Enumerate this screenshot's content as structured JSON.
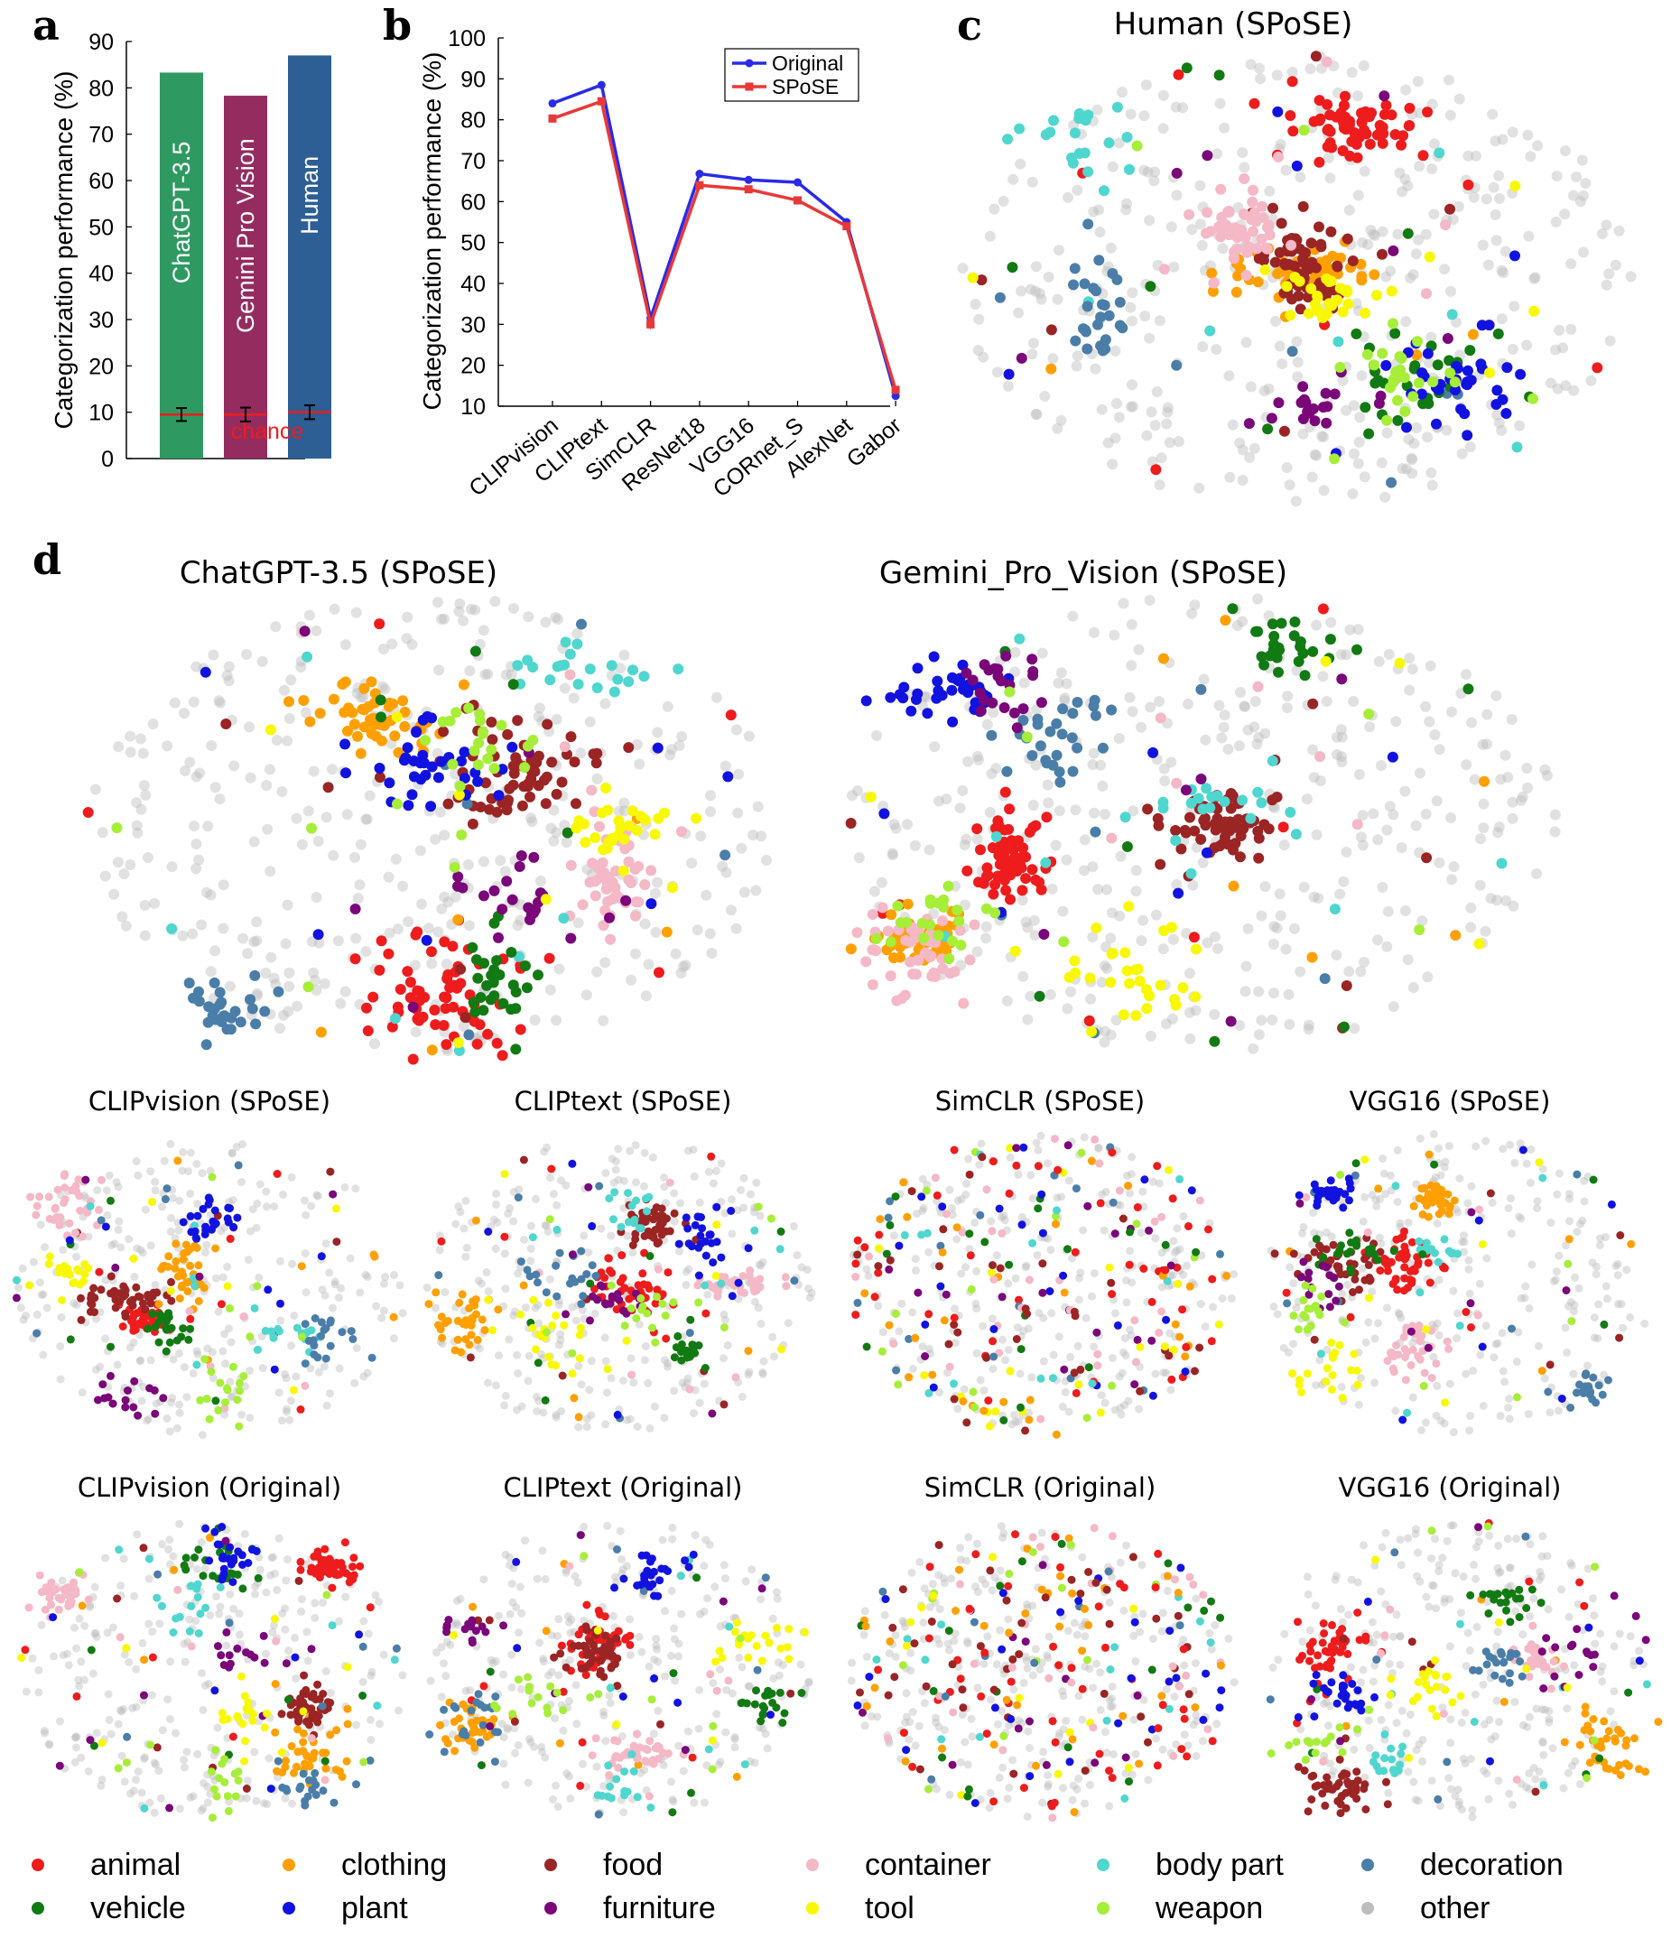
{
  "panel_labels": {
    "a": "a",
    "b": "b",
    "c": "c",
    "d": "d"
  },
  "colors": {
    "animal": "#ee1c1c",
    "clothing": "#ffa000",
    "food": "#9b2424",
    "container": "#f4b8c6",
    "body part": "#4fd6cf",
    "decoration": "#4a7ea8",
    "vehicle": "#127a12",
    "plant": "#1212e0",
    "furniture": "#7a067a",
    "tool": "#f8f800",
    "weapon": "#a6ee38",
    "other": "#bdbdbd"
  },
  "chart_data": [
    {
      "id": "a",
      "type": "bar",
      "ylabel": "Categorization performance (%)",
      "ylim": [
        0,
        90
      ],
      "yticks": [
        0,
        10,
        20,
        30,
        40,
        50,
        60,
        70,
        80,
        90
      ],
      "categories": [
        "ChatGPT-3.5",
        "Gemini Pro Vision",
        "Human"
      ],
      "values": [
        83.3,
        78.3,
        87.0
      ],
      "bar_colors": [
        "#2e9a62",
        "#952c60",
        "#2d5e94"
      ],
      "chance_values": [
        9.5,
        9.5,
        10.0
      ],
      "chance_errors": [
        1.4,
        1.5,
        1.5
      ],
      "chance_label": "chance",
      "chance_color": "#ee1c1c"
    },
    {
      "id": "b",
      "type": "line",
      "ylabel": "Categorization performance (%)",
      "ylim": [
        10,
        100
      ],
      "yticks": [
        10,
        20,
        30,
        40,
        50,
        60,
        70,
        80,
        90,
        100
      ],
      "categories": [
        "CLIPvision",
        "CLIPtext",
        "SimCLR",
        "ResNet18",
        "VGG16",
        "CORnet_S",
        "AlexNet",
        "Gabor"
      ],
      "series": [
        {
          "name": "Original",
          "color": "#2a2ae8",
          "marker": "circle",
          "values": [
            84.0,
            88.5,
            31.5,
            66.8,
            65.3,
            64.7,
            55.0,
            12.5
          ]
        },
        {
          "name": "SPoSE",
          "color": "#e83838",
          "marker": "square",
          "values": [
            80.3,
            84.5,
            30.0,
            64.0,
            63.0,
            60.3,
            54.0,
            14.0
          ]
        }
      ],
      "legend": "top-right"
    },
    {
      "id": "c",
      "type": "scatter",
      "title": "Human (SPoSE)"
    },
    {
      "id": "d1",
      "type": "scatter",
      "title": "ChatGPT-3.5 (SPoSE)"
    },
    {
      "id": "d2",
      "type": "scatter",
      "title": "Gemini_Pro_Vision (SPoSE)"
    },
    {
      "id": "d3",
      "type": "scatter",
      "title": "CLIPvision (SPoSE)"
    },
    {
      "id": "d4",
      "type": "scatter",
      "title": "CLIPtext (SPoSE)"
    },
    {
      "id": "d5",
      "type": "scatter",
      "title": "SimCLR (SPoSE)"
    },
    {
      "id": "d6",
      "type": "scatter",
      "title": "VGG16 (SPoSE)"
    },
    {
      "id": "d7",
      "type": "scatter",
      "title": "CLIPvision (Original)"
    },
    {
      "id": "d8",
      "type": "scatter",
      "title": "CLIPtext (Original)"
    },
    {
      "id": "d9",
      "type": "scatter",
      "title": "SimCLR (Original)"
    },
    {
      "id": "d10",
      "type": "scatter",
      "title": "VGG16 (Original)"
    }
  ],
  "legend": {
    "items": [
      "animal",
      "clothing",
      "food",
      "container",
      "body part",
      "decoration",
      "vehicle",
      "plant",
      "furniture",
      "tool",
      "weapon",
      "other"
    ]
  }
}
